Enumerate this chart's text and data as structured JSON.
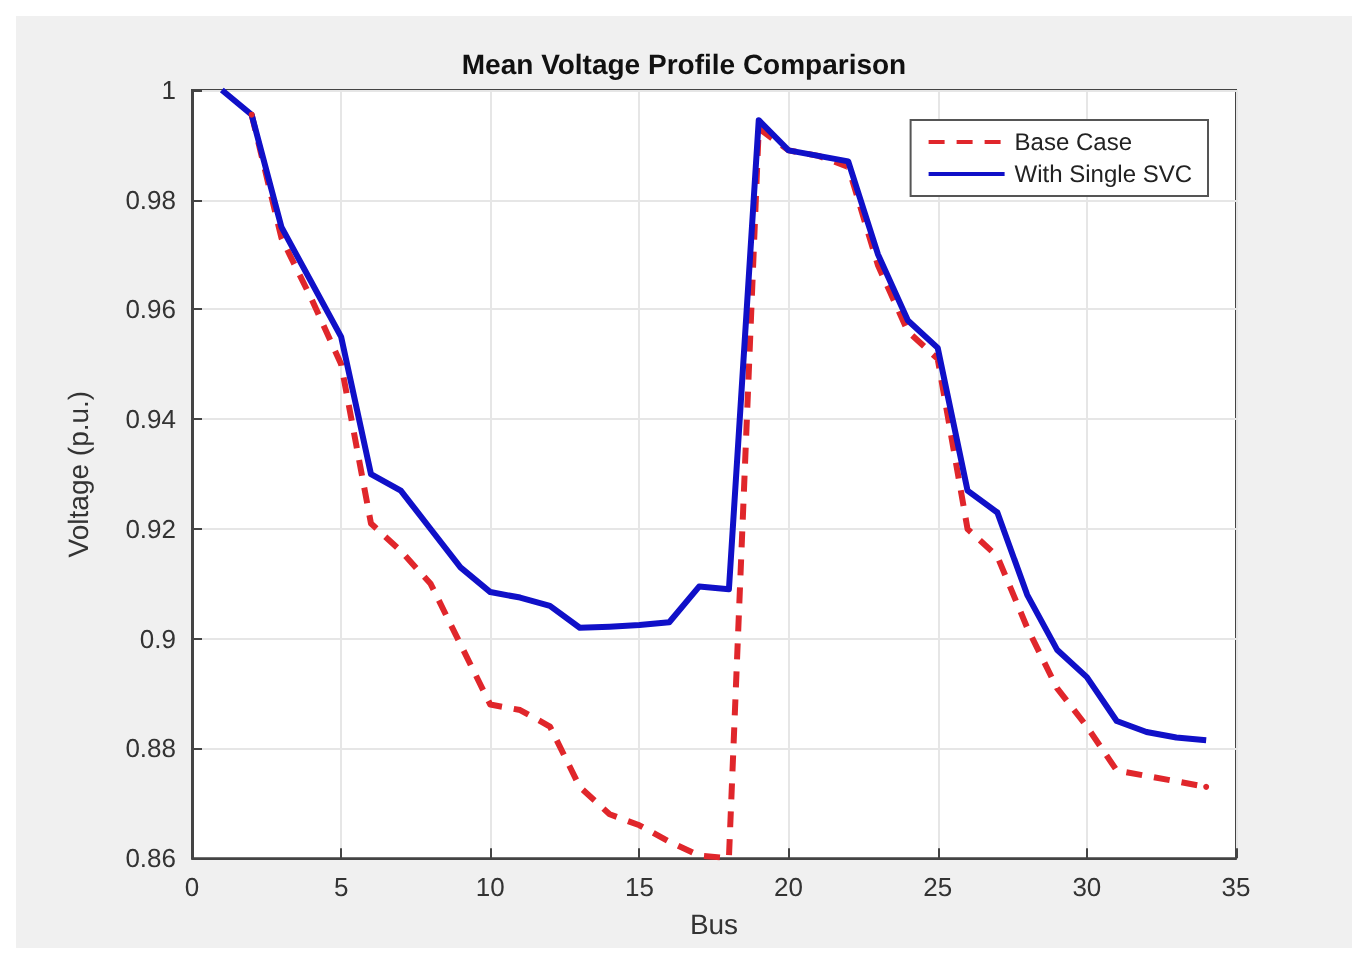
{
  "chart_data": {
    "type": "line",
    "title": "Mean Voltage Profile Comparison",
    "xlabel": "Bus",
    "ylabel": "Voltage (p.u.)",
    "x": [
      1,
      2,
      3,
      4,
      5,
      6,
      7,
      8,
      9,
      10,
      11,
      12,
      13,
      14,
      15,
      16,
      17,
      18,
      19,
      20,
      21,
      22,
      23,
      24,
      25,
      26,
      27,
      28,
      29,
      30,
      31,
      32,
      33,
      34
    ],
    "series": [
      {
        "name": "Base Case",
        "color": "#e0262b",
        "line_style": "dashed",
        "values": [
          null,
          0.9955,
          0.973,
          0.962,
          0.95,
          0.921,
          0.916,
          0.91,
          0.899,
          0.888,
          0.887,
          0.884,
          0.873,
          0.868,
          0.866,
          0.863,
          0.8605,
          0.86,
          0.993,
          0.989,
          0.988,
          0.986,
          0.968,
          0.956,
          0.951,
          0.92,
          0.915,
          0.902,
          0.891,
          0.884,
          0.876,
          0.875,
          0.874,
          0.873
        ]
      },
      {
        "name": "With Single SVC",
        "color": "#1010c8",
        "line_style": "solid",
        "values": [
          1.0,
          0.9955,
          0.975,
          0.965,
          0.955,
          0.93,
          0.927,
          0.92,
          0.913,
          0.9085,
          0.9075,
          0.906,
          0.902,
          0.9022,
          0.9025,
          0.903,
          0.9095,
          0.909,
          0.9945,
          0.989,
          0.988,
          0.987,
          0.97,
          0.958,
          0.953,
          0.927,
          0.923,
          0.908,
          0.898,
          0.893,
          0.885,
          0.883,
          0.882,
          0.8815
        ]
      }
    ],
    "xlim": [
      0,
      35
    ],
    "xticks": [
      0,
      5,
      10,
      15,
      20,
      25,
      30,
      35
    ],
    "ylim": [
      0.86,
      1
    ],
    "yticks": [
      0.86,
      0.88,
      0.9,
      0.92,
      0.94,
      0.96,
      0.98,
      1
    ],
    "grid": true,
    "legend": "top right",
    "marker": "none"
  }
}
